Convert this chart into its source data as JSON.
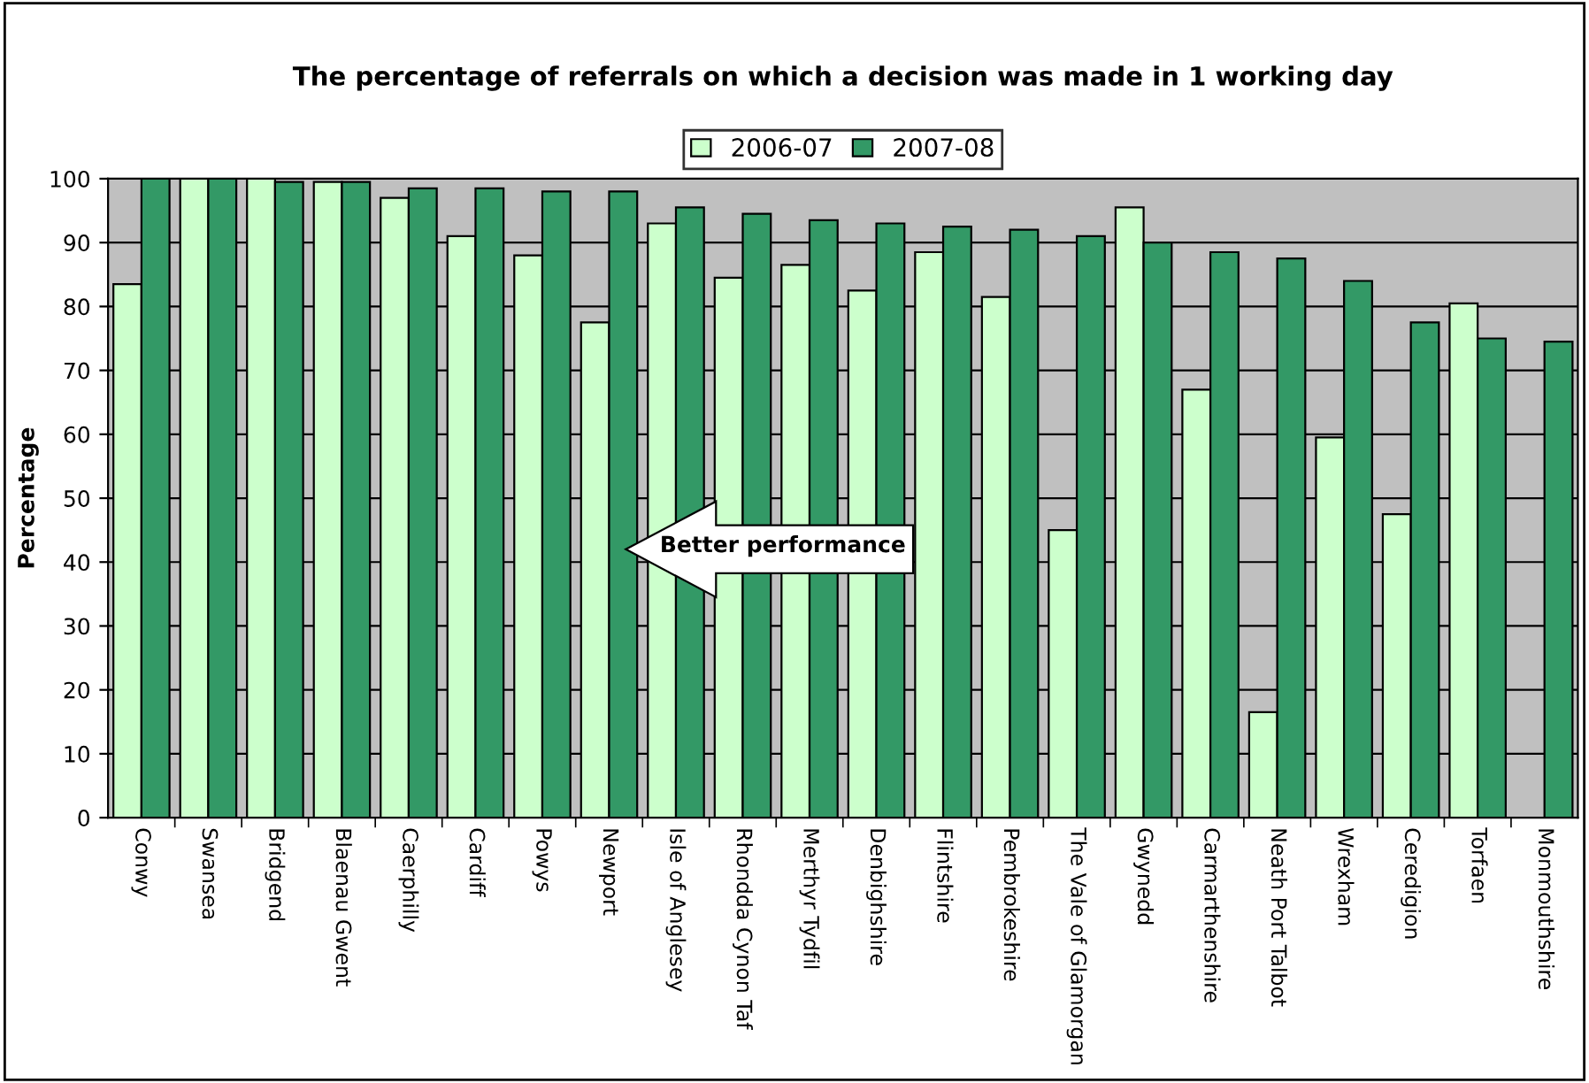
{
  "chart_data": {
    "type": "bar",
    "title": "The percentage of referrals on which a decision was made in 1 working day",
    "ylabel": "Percentage",
    "categories": [
      "Conwy",
      "Swansea",
      "Bridgend",
      "Blaenau Gwent",
      "Caerphilly",
      "Cardiff",
      "Powys",
      "Newport",
      "Isle of Anglesey",
      "Rhondda Cynon Taf",
      "Merthyr Tydfil",
      "Denbighshire",
      "Flintshire",
      "Pembrokeshire",
      "The Vale of Glamorgan",
      "Gwynedd",
      "Carmarthenshire",
      "Neath Port Talbot",
      "Wrexham",
      "Ceredigion",
      "Torfaen",
      "Monmouthshire"
    ],
    "series": [
      {
        "name": "2006-07",
        "color": "#ccffcc",
        "values": [
          83.5,
          100,
          100,
          99.5,
          97,
          91,
          88,
          77.5,
          93,
          84.5,
          86.5,
          82.5,
          88.5,
          81.5,
          45,
          95.5,
          67,
          16.5,
          59.5,
          47.5,
          80.5,
          null
        ]
      },
      {
        "name": "2007-08",
        "color": "#339966",
        "values": [
          100,
          100,
          99.5,
          99.5,
          98.5,
          98.5,
          98,
          98,
          95.5,
          94.5,
          93.5,
          93,
          92.5,
          92,
          91,
          90,
          88.5,
          87.5,
          84,
          77.5,
          75,
          74.5
        ]
      }
    ],
    "ylim": [
      0,
      100
    ],
    "yticks": [
      0,
      10,
      20,
      30,
      40,
      50,
      60,
      70,
      80,
      90,
      100
    ],
    "grid": "y",
    "legend": "top",
    "annotations": [
      "Better performance"
    ]
  }
}
